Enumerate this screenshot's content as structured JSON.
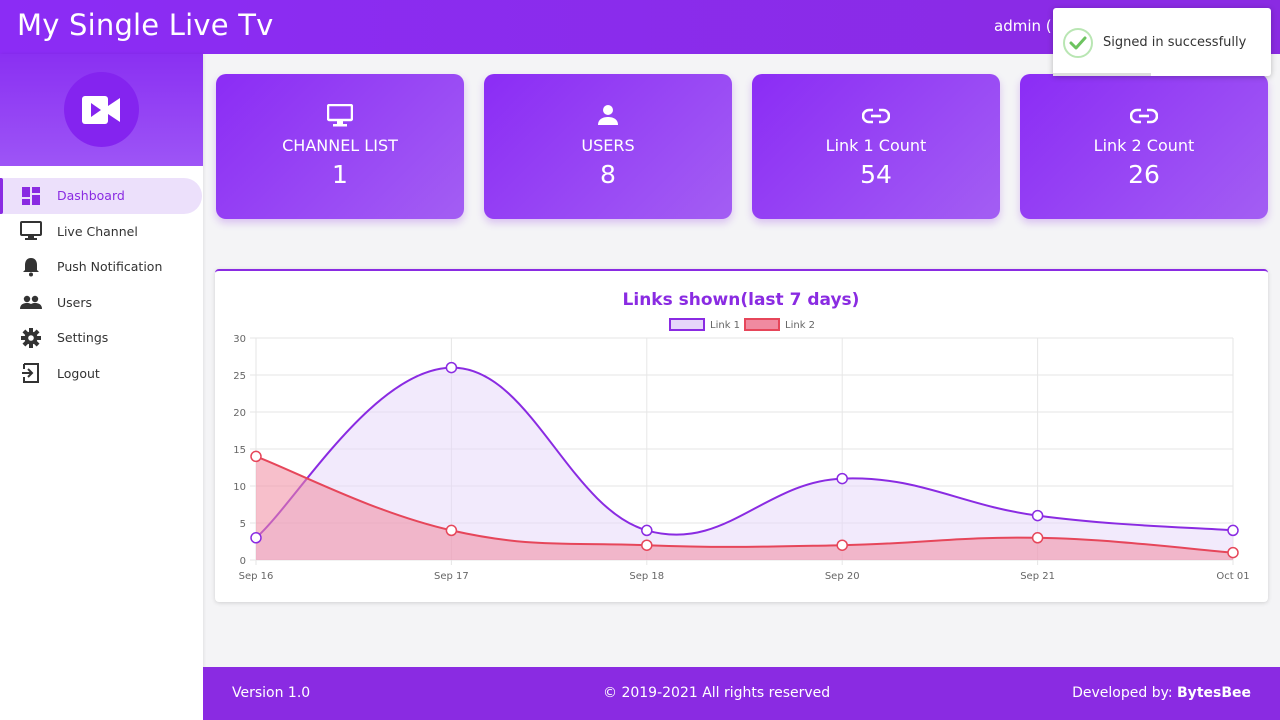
{
  "header": {
    "title": "My Single Live Tv",
    "user": "admin (b"
  },
  "toast": {
    "message": "Signed in successfully",
    "progress": 0.45,
    "icon": "check-circle-icon"
  },
  "sidebar": {
    "logo_icon": "video-camera-icon",
    "items": [
      {
        "label": "Dashboard",
        "icon": "dashboard-icon",
        "active": true
      },
      {
        "label": "Live Channel",
        "icon": "monitor-icon",
        "active": false
      },
      {
        "label": "Push Notification",
        "icon": "bell-icon",
        "active": false
      },
      {
        "label": "Users",
        "icon": "users-icon",
        "active": false
      },
      {
        "label": "Settings",
        "icon": "gear-icon",
        "active": false
      },
      {
        "label": "Logout",
        "icon": "logout-icon",
        "active": false
      }
    ]
  },
  "cards": [
    {
      "title": "CHANNEL LIST",
      "value": "1",
      "icon": "monitor-icon"
    },
    {
      "title": "USERS",
      "value": "8",
      "icon": "user-icon"
    },
    {
      "title": "Link 1 Count",
      "value": "54",
      "icon": "link-icon"
    },
    {
      "title": "Link 2 Count",
      "value": "26",
      "icon": "link-icon"
    }
  ],
  "chart_data": {
    "type": "area",
    "title": "Links shown(last 7 days)",
    "categories": [
      "Sep 16",
      "Sep 17",
      "Sep 18",
      "Sep 20",
      "Sep 21",
      "Oct 01"
    ],
    "series": [
      {
        "name": "Link 1",
        "values": [
          3,
          26,
          4,
          11,
          6,
          4
        ],
        "color": "#8a2be2",
        "fill": "#e6d6fa"
      },
      {
        "name": "Link 2",
        "values": [
          14,
          4,
          2,
          2,
          3,
          1
        ],
        "color": "#e6465a",
        "fill": "#f08aa0"
      }
    ],
    "ylim": [
      0,
      30
    ],
    "yticks": [
      0,
      5,
      10,
      15,
      20,
      25,
      30
    ],
    "grid": true,
    "legend": "top-center"
  },
  "footer": {
    "version": "Version 1.0",
    "copyright": "© 2019-2021 All rights reserved",
    "developed_prefix": "Developed by: ",
    "developer": "BytesBee"
  },
  "colors": {
    "primary": "#8a2be2",
    "link2": "#e6465a"
  }
}
